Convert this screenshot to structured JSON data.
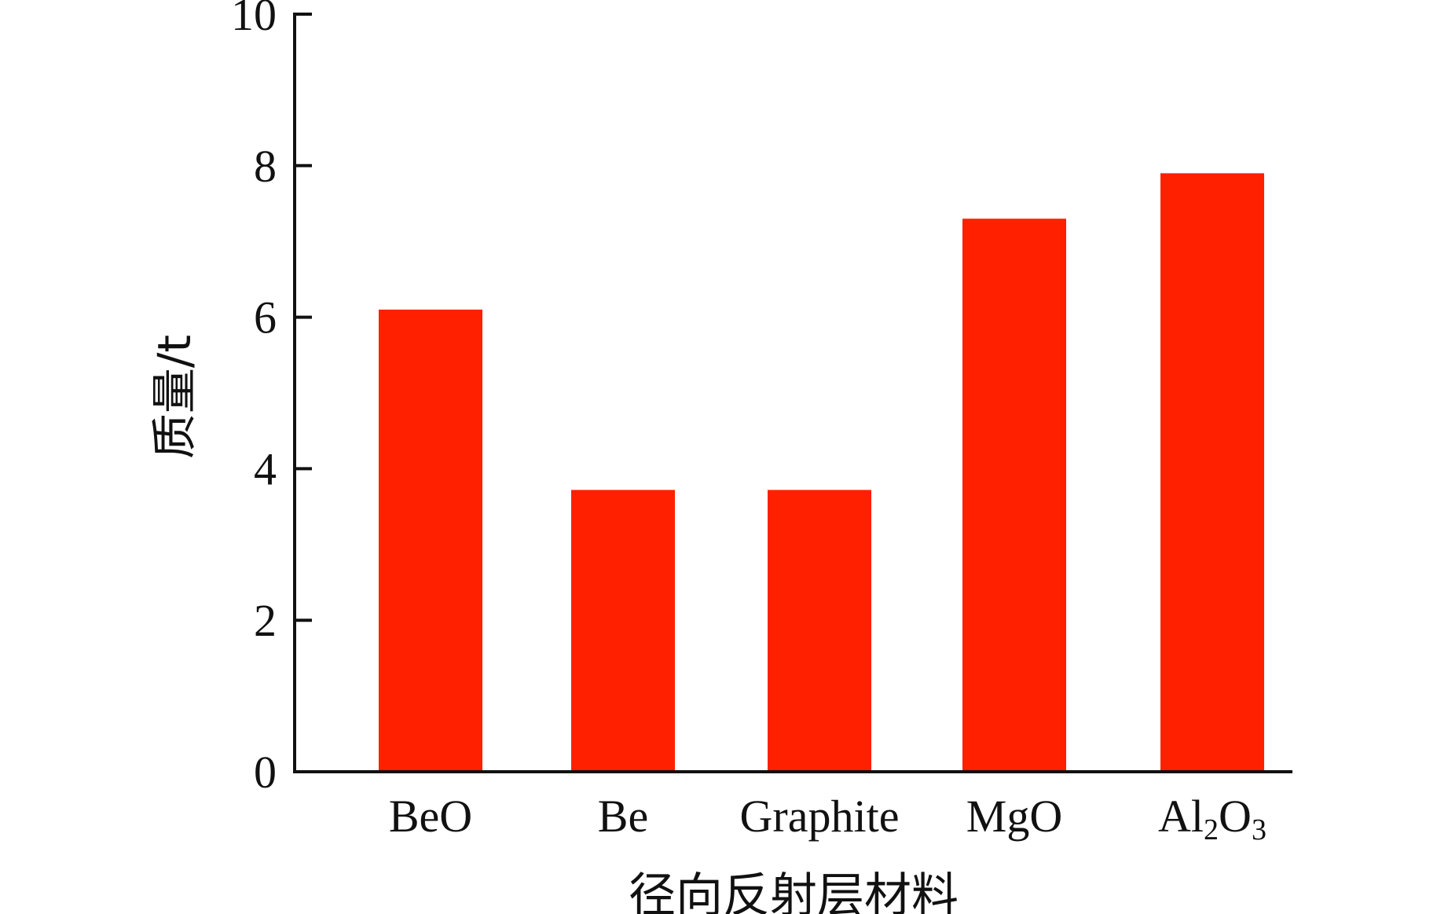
{
  "chart_data": {
    "type": "bar",
    "title": "",
    "xlabel": "径向反射层材料",
    "ylabel": "质量/t",
    "categories": [
      "BeO",
      "Be",
      "Graphite",
      "MgO",
      "Al2O3"
    ],
    "category_labels": [
      {
        "parts": [
          {
            "t": "BeO"
          }
        ]
      },
      {
        "parts": [
          {
            "t": "Be"
          }
        ]
      },
      {
        "parts": [
          {
            "t": "Graphite"
          }
        ]
      },
      {
        "parts": [
          {
            "t": "MgO"
          }
        ]
      },
      {
        "parts": [
          {
            "t": "Al"
          },
          {
            "t": "2",
            "sub": true
          },
          {
            "t": "O"
          },
          {
            "t": "3",
            "sub": true
          }
        ]
      }
    ],
    "values": [
      6.1,
      3.72,
      3.72,
      7.3,
      7.9
    ],
    "ylim": [
      0,
      10
    ],
    "yticks": [
      "0",
      "2",
      "4",
      "6",
      "8",
      "10"
    ],
    "bar_color": "#FF2000",
    "grid": false,
    "legend": "none"
  }
}
